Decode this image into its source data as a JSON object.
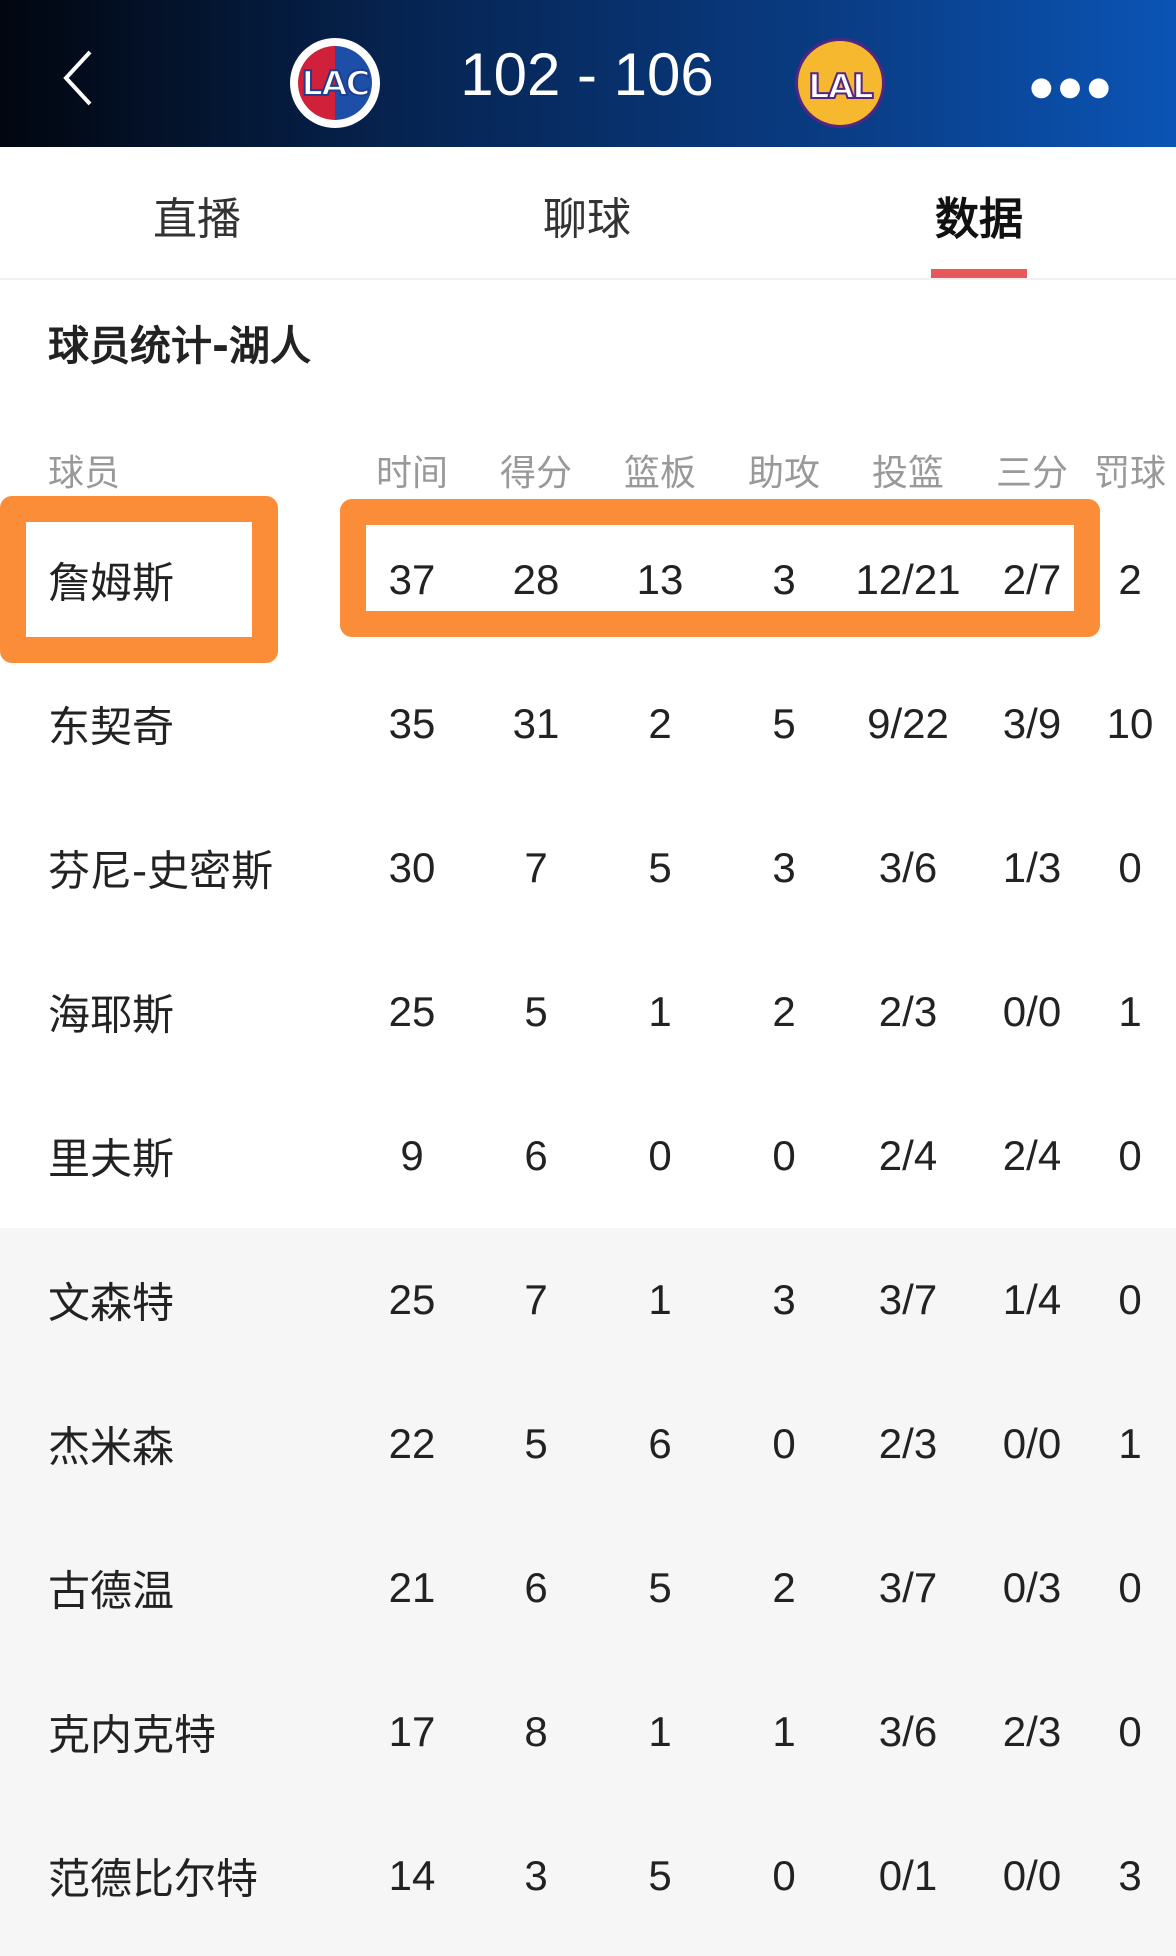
{
  "header": {
    "home_team": "LAC",
    "away_team": "LAL",
    "score": "102 - 106",
    "colors": {
      "lac": "#d0203a",
      "lal": "#552583"
    }
  },
  "tabs": [
    {
      "label": "直播"
    },
    {
      "label": "聊球"
    },
    {
      "label": "数据",
      "active": true
    }
  ],
  "accent": "#e8575a",
  "highlight_color": "#fb8c38",
  "section_title": "球员统计-湖人",
  "columns": [
    "球员",
    "时间",
    "得分",
    "篮板",
    "助攻",
    "投篮",
    "三分",
    "罚球"
  ],
  "players": [
    {
      "name": "詹姆斯",
      "stats": [
        "37",
        "28",
        "13",
        "3",
        "12/21",
        "2/7",
        "2"
      ]
    },
    {
      "name": "东契奇",
      "stats": [
        "35",
        "31",
        "2",
        "5",
        "9/22",
        "3/9",
        "10"
      ]
    },
    {
      "name": "芬尼-史密斯",
      "stats": [
        "30",
        "7",
        "5",
        "3",
        "3/6",
        "1/3",
        "0"
      ]
    },
    {
      "name": "海耶斯",
      "stats": [
        "25",
        "5",
        "1",
        "2",
        "2/3",
        "0/0",
        "1"
      ]
    },
    {
      "name": "里夫斯",
      "stats": [
        "9",
        "6",
        "0",
        "0",
        "2/4",
        "2/4",
        "0"
      ]
    },
    {
      "name": "文森特",
      "stats": [
        "25",
        "7",
        "1",
        "3",
        "3/7",
        "1/4",
        "0"
      ]
    },
    {
      "name": "杰米森",
      "stats": [
        "22",
        "5",
        "6",
        "0",
        "2/3",
        "0/0",
        "1"
      ]
    },
    {
      "name": "古德温",
      "stats": [
        "21",
        "6",
        "5",
        "2",
        "3/7",
        "0/3",
        "0"
      ]
    },
    {
      "name": "克内克特",
      "stats": [
        "17",
        "8",
        "1",
        "1",
        "3/6",
        "2/3",
        "0"
      ]
    },
    {
      "name": "范德比尔特",
      "stats": [
        "14",
        "3",
        "5",
        "0",
        "0/1",
        "0/0",
        "3"
      ]
    }
  ]
}
